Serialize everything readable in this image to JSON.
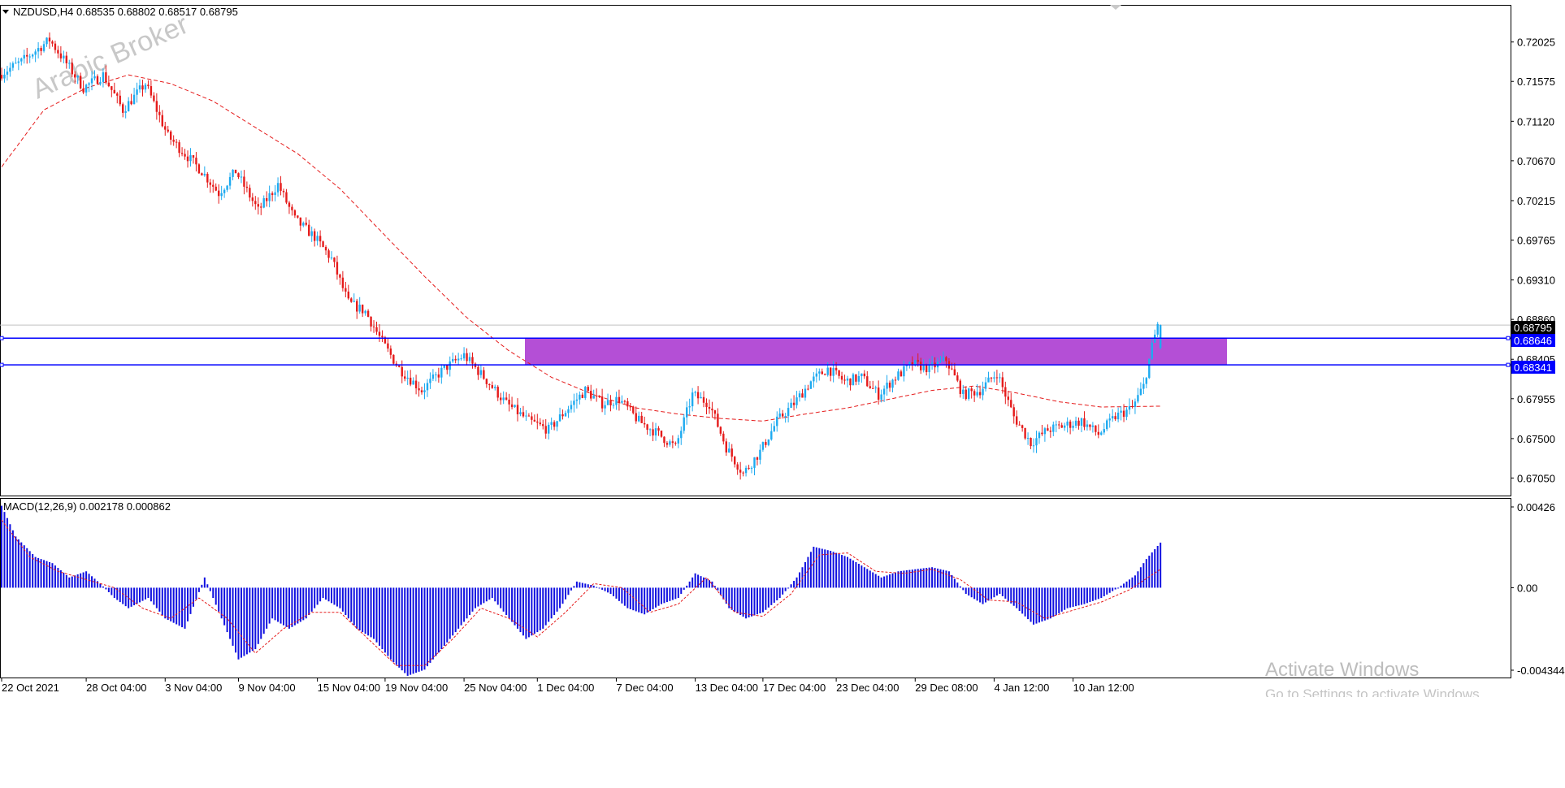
{
  "header": {
    "symbol_line": "NZDUSD,H4  0.68535 0.68802 0.68517 0.68795",
    "macd_line": "MACD(12,26,9) 0.002178 0.000862"
  },
  "watermark_logo": "Arabic Broker",
  "activation": {
    "title": "Activate Windows",
    "subtitle": "Go to Settings to activate Windows."
  },
  "price_axis": {
    "ticks": [
      "0.72025",
      "0.71575",
      "0.71120",
      "0.70670",
      "0.70215",
      "0.69765",
      "0.69310",
      "0.68860",
      "0.68405",
      "0.67955",
      "0.67500",
      "0.67050"
    ],
    "tags": {
      "current": "0.68795",
      "upper": "0.68646",
      "lower": "0.68341"
    }
  },
  "macd_axis": {
    "ticks": [
      "0.00426",
      "0.00",
      "-0.004344"
    ]
  },
  "time_axis": {
    "labels": [
      "22 Oct 2021",
      "28 Oct 04:00",
      "3 Nov 04:00",
      "9 Nov 04:00",
      "15 Nov 04:00",
      "19 Nov 04:00",
      "25 Nov 04:00",
      "1 Dec 04:00",
      "7 Dec 04:00",
      "13 Dec 04:00",
      "17 Dec 04:00",
      "23 Dec 04:00",
      "29 Dec 08:00",
      "4 Jan 12:00",
      "10 Jan 12:00"
    ]
  },
  "colors": {
    "bull": "#1eaaf0",
    "bear": "#e51b1b",
    "ma": "#e51b1b",
    "zone": "#b44fd6",
    "level_line": "#0000ff",
    "macd_hist": "#1010e0",
    "macd_signal": "#e51b1b"
  },
  "chart_data": {
    "type": "candlestick",
    "symbol": "NZDUSD",
    "timeframe": "H4",
    "last_bar": {
      "open": 0.68535,
      "high": 0.68802,
      "low": 0.68517,
      "close": 0.68795
    },
    "price_range": [
      0.6685,
      0.7243
    ],
    "zone": {
      "upper": 0.68646,
      "lower": 0.68341
    },
    "current_price": 0.68795,
    "price_path": [
      [
        0,
        0.7165
      ],
      [
        8,
        0.718
      ],
      [
        18,
        0.7205
      ],
      [
        24,
        0.7178
      ],
      [
        30,
        0.715
      ],
      [
        37,
        0.7165
      ],
      [
        44,
        0.7125
      ],
      [
        52,
        0.7155
      ],
      [
        60,
        0.7095
      ],
      [
        66,
        0.7075
      ],
      [
        72,
        0.7055
      ],
      [
        78,
        0.703
      ],
      [
        84,
        0.7055
      ],
      [
        92,
        0.701
      ],
      [
        99,
        0.704
      ],
      [
        105,
        0.7
      ],
      [
        112,
        0.698
      ],
      [
        118,
        0.6955
      ],
      [
        124,
        0.6905
      ],
      [
        130,
        0.6895
      ],
      [
        136,
        0.686
      ],
      [
        142,
        0.683
      ],
      [
        150,
        0.6805
      ],
      [
        158,
        0.683
      ],
      [
        165,
        0.6845
      ],
      [
        172,
        0.682
      ],
      [
        180,
        0.679
      ],
      [
        188,
        0.677
      ],
      [
        195,
        0.676
      ],
      [
        202,
        0.6785
      ],
      [
        208,
        0.6805
      ],
      [
        214,
        0.679
      ],
      [
        220,
        0.6795
      ],
      [
        227,
        0.677
      ],
      [
        234,
        0.6755
      ],
      [
        240,
        0.674
      ],
      [
        246,
        0.68
      ],
      [
        252,
        0.679
      ],
      [
        258,
        0.674
      ],
      [
        264,
        0.671
      ],
      [
        270,
        0.6735
      ],
      [
        276,
        0.677
      ],
      [
        282,
        0.679
      ],
      [
        288,
        0.6815
      ],
      [
        294,
        0.683
      ],
      [
        300,
        0.6815
      ],
      [
        306,
        0.682
      ],
      [
        312,
        0.68
      ],
      [
        318,
        0.682
      ],
      [
        324,
        0.6835
      ],
      [
        330,
        0.683
      ],
      [
        336,
        0.684
      ],
      [
        342,
        0.68
      ],
      [
        348,
        0.6805
      ],
      [
        354,
        0.6825
      ],
      [
        360,
        0.6775
      ],
      [
        366,
        0.6745
      ],
      [
        372,
        0.676
      ],
      [
        378,
        0.6765
      ],
      [
        384,
        0.677
      ],
      [
        390,
        0.6755
      ],
      [
        396,
        0.6775
      ],
      [
        402,
        0.6785
      ],
      [
        406,
        0.681
      ],
      [
        409,
        0.6855
      ],
      [
        411,
        0.688
      ]
    ],
    "moving_average": {
      "style": "dashed",
      "points": [
        [
          0,
          0.706
        ],
        [
          15,
          0.7125
        ],
        [
          30,
          0.715
        ],
        [
          45,
          0.7165
        ],
        [
          60,
          0.7155
        ],
        [
          75,
          0.7135
        ],
        [
          90,
          0.7105
        ],
        [
          105,
          0.7075
        ],
        [
          120,
          0.7035
        ],
        [
          135,
          0.6985
        ],
        [
          150,
          0.6935
        ],
        [
          165,
          0.6888
        ],
        [
          180,
          0.685
        ],
        [
          195,
          0.682
        ],
        [
          210,
          0.68
        ],
        [
          225,
          0.6785
        ],
        [
          240,
          0.6778
        ],
        [
          255,
          0.6773
        ],
        [
          270,
          0.677
        ],
        [
          285,
          0.6778
        ],
        [
          300,
          0.6785
        ],
        [
          315,
          0.6795
        ],
        [
          330,
          0.6805
        ],
        [
          345,
          0.681
        ],
        [
          360,
          0.6802
        ],
        [
          375,
          0.6792
        ],
        [
          390,
          0.6786
        ],
        [
          411,
          0.6787
        ]
      ]
    },
    "macd": {
      "range": [
        -0.004344,
        0.00426
      ],
      "histogram": [
        [
          0,
          0.004
        ],
        [
          5,
          0.0025
        ],
        [
          12,
          0.0015
        ],
        [
          18,
          0.0012
        ],
        [
          24,
          0.0005
        ],
        [
          30,
          0.0008
        ],
        [
          35,
          0.0002
        ],
        [
          40,
          -0.0005
        ],
        [
          45,
          -0.001
        ],
        [
          52,
          -0.0005
        ],
        [
          58,
          -0.0015
        ],
        [
          65,
          -0.002
        ],
        [
          72,
          0.0005
        ],
        [
          78,
          -0.0015
        ],
        [
          84,
          -0.0035
        ],
        [
          90,
          -0.003
        ],
        [
          96,
          -0.0015
        ],
        [
          102,
          -0.002
        ],
        [
          108,
          -0.0015
        ],
        [
          114,
          -0.0005
        ],
        [
          120,
          -0.001
        ],
        [
          126,
          -0.002
        ],
        [
          132,
          -0.0025
        ],
        [
          138,
          -0.0035
        ],
        [
          144,
          -0.0043
        ],
        [
          150,
          -0.004
        ],
        [
          156,
          -0.003
        ],
        [
          162,
          -0.002
        ],
        [
          168,
          -0.001
        ],
        [
          174,
          -0.0005
        ],
        [
          180,
          -0.0015
        ],
        [
          186,
          -0.0025
        ],
        [
          192,
          -0.002
        ],
        [
          198,
          -0.001
        ],
        [
          204,
          0.0003
        ],
        [
          210,
          0.0001
        ],
        [
          216,
          -0.0003
        ],
        [
          222,
          -0.001
        ],
        [
          228,
          -0.0013
        ],
        [
          234,
          -0.0008
        ],
        [
          240,
          -0.0005
        ],
        [
          246,
          0.0007
        ],
        [
          252,
          0.0003
        ],
        [
          258,
          -0.001
        ],
        [
          264,
          -0.0015
        ],
        [
          270,
          -0.0012
        ],
        [
          276,
          -0.0005
        ],
        [
          282,
          0.0005
        ],
        [
          288,
          0.002
        ],
        [
          294,
          0.0018
        ],
        [
          300,
          0.0015
        ],
        [
          306,
          0.001
        ],
        [
          312,
          0.0005
        ],
        [
          318,
          0.0008
        ],
        [
          324,
          0.0009
        ],
        [
          330,
          0.001
        ],
        [
          336,
          0.0008
        ],
        [
          342,
          -0.0003
        ],
        [
          348,
          -0.0008
        ],
        [
          354,
          -0.0003
        ],
        [
          360,
          -0.001
        ],
        [
          366,
          -0.0018
        ],
        [
          372,
          -0.0015
        ],
        [
          378,
          -0.001
        ],
        [
          384,
          -0.0008
        ],
        [
          390,
          -0.0005
        ],
        [
          396,
          0.0
        ],
        [
          402,
          0.0006
        ],
        [
          406,
          0.0014
        ],
        [
          411,
          0.0022
        ]
      ],
      "signal": [
        [
          0,
          0.0033
        ],
        [
          10,
          0.0015
        ],
        [
          20,
          0.0008
        ],
        [
          30,
          0.0004
        ],
        [
          40,
          0.0
        ],
        [
          50,
          -0.001
        ],
        [
          60,
          -0.0015
        ],
        [
          70,
          -0.0005
        ],
        [
          80,
          -0.0015
        ],
        [
          90,
          -0.0032
        ],
        [
          100,
          -0.002
        ],
        [
          110,
          -0.0012
        ],
        [
          120,
          -0.0012
        ],
        [
          130,
          -0.0025
        ],
        [
          140,
          -0.0038
        ],
        [
          150,
          -0.0038
        ],
        [
          160,
          -0.0025
        ],
        [
          170,
          -0.001
        ],
        [
          180,
          -0.0015
        ],
        [
          190,
          -0.0024
        ],
        [
          200,
          -0.0012
        ],
        [
          210,
          0.0002
        ],
        [
          220,
          0.0
        ],
        [
          230,
          -0.0012
        ],
        [
          240,
          -0.0008
        ],
        [
          250,
          0.0005
        ],
        [
          260,
          -0.0012
        ],
        [
          270,
          -0.0014
        ],
        [
          280,
          -0.0003
        ],
        [
          290,
          0.0016
        ],
        [
          300,
          0.0017
        ],
        [
          310,
          0.0008
        ],
        [
          320,
          0.0007
        ],
        [
          330,
          0.0009
        ],
        [
          340,
          0.0004
        ],
        [
          350,
          -0.0006
        ],
        [
          360,
          -0.0007
        ],
        [
          370,
          -0.0015
        ],
        [
          380,
          -0.0011
        ],
        [
          390,
          -0.0007
        ],
        [
          400,
          -0.0001
        ],
        [
          411,
          0.0009
        ]
      ]
    },
    "time_labels": [
      "22 Oct 2021",
      "28 Oct 04:00",
      "3 Nov 04:00",
      "9 Nov 04:00",
      "15 Nov 04:00",
      "19 Nov 04:00",
      "25 Nov 04:00",
      "1 Dec 04:00",
      "7 Dec 04:00",
      "13 Dec 04:00",
      "17 Dec 04:00",
      "23 Dec 04:00",
      "29 Dec 08:00",
      "4 Jan 12:00",
      "10 Jan 12:00"
    ]
  }
}
